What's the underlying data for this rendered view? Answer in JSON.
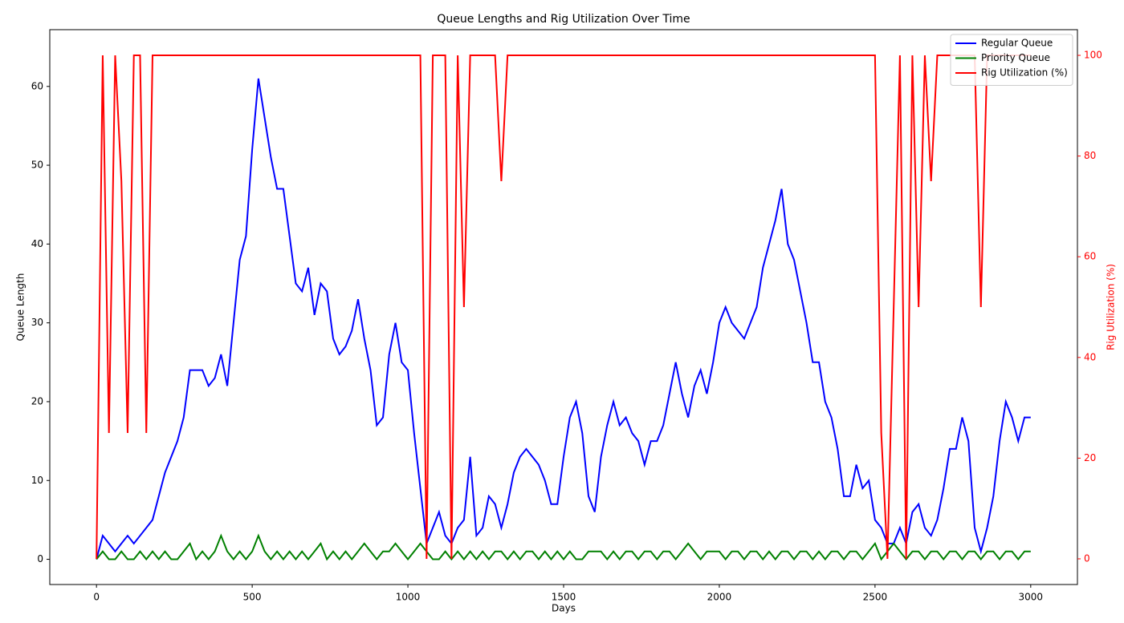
{
  "chart_data": {
    "type": "line",
    "title": "Queue Lengths and Rig Utilization Over Time",
    "x_label": "Days",
    "y_label": "Queue Length",
    "y2_label": "Rig Utilization (%)",
    "xlim": [
      -150,
      3150
    ],
    "ylim": [
      -3.2,
      67.2
    ],
    "y2lim": [
      -5.1,
      105.1
    ],
    "xticks": [
      0,
      500,
      1000,
      1500,
      2000,
      2500,
      3000
    ],
    "yticks": [
      0,
      10,
      20,
      30,
      40,
      50,
      60
    ],
    "y2ticks": [
      0,
      20,
      40,
      60,
      80,
      100
    ],
    "grid": false,
    "legend": "upper right",
    "x": [
      0,
      20,
      40,
      60,
      80,
      100,
      120,
      140,
      160,
      180,
      200,
      220,
      240,
      260,
      280,
      300,
      320,
      340,
      360,
      380,
      400,
      420,
      440,
      460,
      480,
      500,
      520,
      540,
      560,
      580,
      600,
      620,
      640,
      660,
      680,
      700,
      720,
      740,
      760,
      780,
      800,
      820,
      840,
      860,
      880,
      900,
      920,
      940,
      960,
      980,
      1000,
      1020,
      1040,
      1060,
      1080,
      1100,
      1120,
      1140,
      1160,
      1180,
      1200,
      1220,
      1240,
      1260,
      1280,
      1300,
      1320,
      1340,
      1360,
      1380,
      1400,
      1420,
      1440,
      1460,
      1480,
      1500,
      1520,
      1540,
      1560,
      1580,
      1600,
      1620,
      1640,
      1660,
      1680,
      1700,
      1720,
      1740,
      1760,
      1780,
      1800,
      1820,
      1840,
      1860,
      1880,
      1900,
      1920,
      1940,
      1960,
      1980,
      2000,
      2020,
      2040,
      2060,
      2080,
      2100,
      2120,
      2140,
      2160,
      2180,
      2200,
      2220,
      2240,
      2260,
      2280,
      2300,
      2320,
      2340,
      2360,
      2380,
      2400,
      2420,
      2440,
      2460,
      2480,
      2500,
      2520,
      2540,
      2560,
      2580,
      2600,
      2620,
      2640,
      2660,
      2680,
      2700,
      2720,
      2740,
      2760,
      2780,
      2800,
      2820,
      2840,
      2860,
      2880,
      2900,
      2920,
      2940,
      2960,
      2980,
      3000
    ],
    "series": [
      {
        "name": "Regular Queue",
        "color": "#0000ff",
        "values": [
          0,
          3,
          2,
          1,
          2,
          3,
          2,
          3,
          4,
          5,
          8,
          11,
          13,
          15,
          18,
          24,
          24,
          24,
          22,
          23,
          26,
          22,
          30,
          38,
          41,
          52,
          61,
          56,
          51,
          47,
          47,
          41,
          35,
          34,
          37,
          31,
          35,
          34,
          28,
          26,
          27,
          29,
          33,
          28,
          24,
          17,
          18,
          26,
          30,
          25,
          24,
          16,
          9,
          2,
          4,
          6,
          3,
          2,
          4,
          5,
          13,
          3,
          4,
          8,
          7,
          4,
          7,
          11,
          13,
          14,
          13,
          12,
          10,
          7,
          7,
          13,
          18,
          20,
          16,
          8,
          6,
          13,
          17,
          20,
          17,
          18,
          16,
          15,
          12,
          15,
          15,
          17,
          21,
          25,
          21,
          18,
          22,
          24,
          21,
          25,
          30,
          32,
          30,
          29,
          28,
          30,
          32,
          37,
          40,
          43,
          47,
          40,
          38,
          34,
          30,
          25,
          25,
          20,
          18,
          14,
          8,
          8,
          12,
          9,
          10,
          5,
          4,
          2,
          2,
          4,
          2,
          6,
          7,
          4,
          3,
          5,
          9,
          14,
          14,
          18,
          15,
          4,
          1,
          4,
          8,
          15,
          20,
          18,
          15,
          18,
          18
        ]
      },
      {
        "name": "Priority Queue",
        "color": "#008000",
        "values": [
          0,
          1,
          0,
          0,
          1,
          0,
          0,
          1,
          0,
          1,
          0,
          1,
          0,
          0,
          1,
          2,
          0,
          1,
          0,
          1,
          3,
          1,
          0,
          1,
          0,
          1,
          3,
          1,
          0,
          1,
          0,
          1,
          0,
          1,
          0,
          1,
          2,
          0,
          1,
          0,
          1,
          0,
          1,
          2,
          1,
          0,
          1,
          1,
          2,
          1,
          0,
          1,
          2,
          1,
          0,
          0,
          1,
          0,
          1,
          0,
          1,
          0,
          1,
          0,
          1,
          1,
          0,
          1,
          0,
          1,
          1,
          0,
          1,
          0,
          1,
          0,
          1,
          0,
          0,
          1,
          1,
          1,
          0,
          1,
          0,
          1,
          1,
          0,
          1,
          1,
          0,
          1,
          1,
          0,
          1,
          2,
          1,
          0,
          1,
          1,
          1,
          0,
          1,
          1,
          0,
          1,
          1,
          0,
          1,
          0,
          1,
          1,
          0,
          1,
          1,
          0,
          1,
          0,
          1,
          1,
          0,
          1,
          1,
          0,
          1,
          2,
          0,
          1,
          2,
          1,
          0,
          1,
          1,
          0,
          1,
          1,
          0,
          1,
          1,
          0,
          1,
          1,
          0,
          1,
          1,
          0,
          1,
          1,
          0,
          1,
          1
        ]
      },
      {
        "name": "Rig Utilization (%)",
        "color": "#ff0000",
        "axis": "y2",
        "values": [
          0,
          100,
          25,
          100,
          75,
          25,
          100,
          100,
          25,
          100,
          100,
          100,
          100,
          100,
          100,
          100,
          100,
          100,
          100,
          100,
          100,
          100,
          100,
          100,
          100,
          100,
          100,
          100,
          100,
          100,
          100,
          100,
          100,
          100,
          100,
          100,
          100,
          100,
          100,
          100,
          100,
          100,
          100,
          100,
          100,
          100,
          100,
          100,
          100,
          100,
          100,
          100,
          100,
          0,
          100,
          100,
          100,
          0,
          100,
          50,
          100,
          100,
          100,
          100,
          100,
          75,
          100,
          100,
          100,
          100,
          100,
          100,
          100,
          100,
          100,
          100,
          100,
          100,
          100,
          100,
          100,
          100,
          100,
          100,
          100,
          100,
          100,
          100,
          100,
          100,
          100,
          100,
          100,
          100,
          100,
          100,
          100,
          100,
          100,
          100,
          100,
          100,
          100,
          100,
          100,
          100,
          100,
          100,
          100,
          100,
          100,
          100,
          100,
          100,
          100,
          100,
          100,
          100,
          100,
          100,
          100,
          100,
          100,
          100,
          100,
          100,
          25,
          0,
          50,
          100,
          0,
          100,
          50,
          100,
          75,
          100,
          100,
          100,
          100,
          100,
          100,
          100,
          50,
          100,
          100,
          100,
          100,
          100,
          100,
          100,
          100
        ]
      }
    ]
  }
}
